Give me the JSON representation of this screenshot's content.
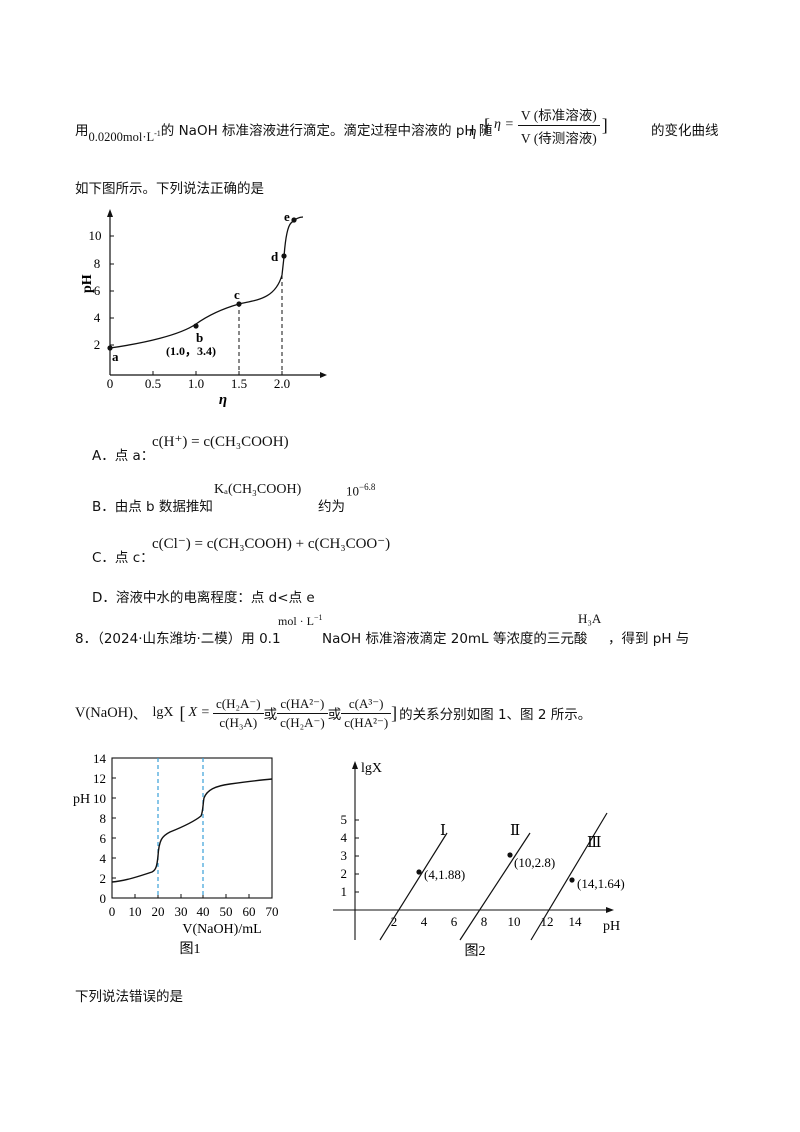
{
  "q7": {
    "line1_pre": "用",
    "line1_conc": "0.0200mol·L",
    "line1_conc_sup": "-1",
    "line1_mid": "的 NaOH 标准溶液进行滴定。滴定过程中溶液的 pH 随",
    "eta_symbol": "η",
    "bracket_open": "[",
    "eta_def_lhs": "η =",
    "eta_num": "V (标准溶液)",
    "eta_den": "V (待测溶液)",
    "bracket_close": "]",
    "line1_post": "的变化曲线",
    "line2": "如下图所示。下列说法正确的是",
    "graph": {
      "ylabel": "pH",
      "xlabel": "η",
      "yticks": [
        "2",
        "4",
        "6",
        "8",
        "10"
      ],
      "xticks": [
        "0",
        "0.5",
        "1.0",
        "1.5",
        "2.0"
      ],
      "points": {
        "a": "a",
        "b": "b",
        "c": "c",
        "d": "d",
        "e": "e"
      },
      "b_annotation": "(1.0，3.4)"
    },
    "options": {
      "A_label": "A．点 a：",
      "A_math": "c(H⁺) = c(CH₃COOH)",
      "B_label": "B．由点 b 数据推知",
      "B_math": "Kₐ(CH₃COOH)",
      "B_mid": "约为",
      "B_val": "10",
      "B_exp": "−6.8",
      "C_label": "C．点 c：",
      "C_math": "c(Cl⁻) = c(CH₃COOH) + c(CH₃COO⁻)",
      "D_text": "D．溶液中水的电离程度：点 d<点 e"
    }
  },
  "q8": {
    "line1_pre": "8．（2024·山东潍坊·二模）用 0.1",
    "line1_unit": "mol · L",
    "line1_unit_sup": "−1",
    "line1_mid": "NaOH 标准溶液滴定 20mL 等浓度的三元酸",
    "line1_acid": "H₃A",
    "line1_post": "，得到 pH 与",
    "line2_v": "V(NaOH)",
    "line2_sep": "、",
    "line2_lg": "lgX",
    "line2_x": "X =",
    "f1_num": "c(H₂A⁻)",
    "f1_den": "c(H₃A)",
    "or1": "或",
    "f2_num": "c(HA²⁻)",
    "f2_den": "c(H₂A⁻)",
    "or2": "或",
    "f3_num": "c(A³⁻)",
    "f3_den": "c(HA²⁻)",
    "line2_post": "的关系分别如图 1、图 2 所示。",
    "fig1": {
      "ylabel": "pH",
      "xlabel": "V(NaOH)/mL",
      "caption": "图1",
      "yticks": [
        "0",
        "2",
        "4",
        "6",
        "8",
        "10",
        "12",
        "14"
      ],
      "xticks": [
        "0",
        "10",
        "20",
        "30",
        "40",
        "50",
        "60",
        "70"
      ]
    },
    "fig2": {
      "ylabel": "lgX",
      "xlabel": "pH",
      "caption": "图2",
      "yticks": [
        "1",
        "2",
        "3",
        "4",
        "5"
      ],
      "xticks": [
        "2",
        "4",
        "6",
        "8",
        "10",
        "12",
        "14"
      ],
      "line_labels": [
        "Ⅰ",
        "Ⅱ",
        "Ⅲ"
      ],
      "point_labels": [
        "(4,1.88)",
        "(10,2.8)",
        "(14,1.64)"
      ]
    },
    "line3": "下列说法错误的是"
  }
}
